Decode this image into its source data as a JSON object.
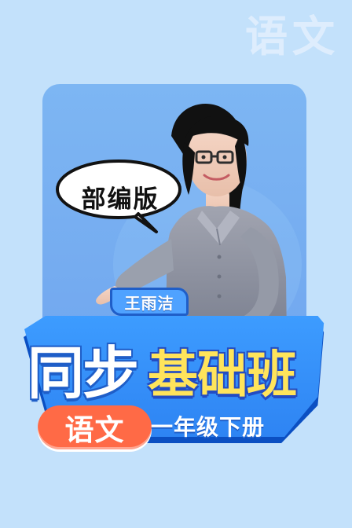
{
  "page": {
    "corner_watermark": "语文",
    "badge": "部编版",
    "teacher_name": "王雨洁",
    "title_left": "同步",
    "title_right": "基础班",
    "subject": "语文",
    "grade": "一年级下册"
  },
  "icons": {
    "teacher": "teacher-illustration-icon"
  },
  "colors": {
    "background": "#c3e1fb",
    "card": "#7db6f3",
    "title_band": "#3d9cff",
    "title_highlight": "#ffe45b",
    "subject_pill": "#ff6a46",
    "name_tag": "#4fa2ff"
  }
}
